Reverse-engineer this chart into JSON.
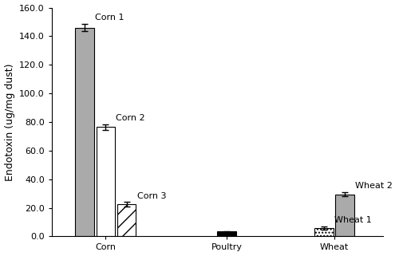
{
  "title": "",
  "ylabel": "Endotoxin (ug/mg dust)",
  "ylim": [
    0,
    160
  ],
  "yticks": [
    0.0,
    20.0,
    40.0,
    60.0,
    80.0,
    100.0,
    120.0,
    140.0,
    160.0
  ],
  "group_labels": [
    "Corn",
    "Poultry",
    "Wheat"
  ],
  "bars": [
    {
      "label": "Corn 1",
      "group": "Corn",
      "value": 146.0,
      "error": 2.5,
      "color": "#aaaaaa",
      "pattern": "",
      "show_label": true
    },
    {
      "label": "Corn 2",
      "group": "Corn",
      "value": 76.5,
      "error": 2.0,
      "color": "white",
      "pattern": "",
      "show_label": true
    },
    {
      "label": "Corn 3",
      "group": "Corn",
      "value": 22.5,
      "error": 1.5,
      "color": "white",
      "pattern": "//",
      "show_label": true
    },
    {
      "label": "Poultry",
      "group": "Poultry",
      "value": 3.5,
      "error": 0.3,
      "color": "black",
      "pattern": "",
      "show_label": false
    },
    {
      "label": "Wheat 1",
      "group": "Wheat",
      "value": 6.0,
      "error": 1.2,
      "color": "white",
      "pattern": "....",
      "show_label": true
    },
    {
      "label": "Wheat 2",
      "group": "Wheat",
      "value": 29.5,
      "error": 1.5,
      "color": "#aaaaaa",
      "pattern": "",
      "show_label": true
    }
  ],
  "bar_width": 0.7,
  "background_color": "#ffffff",
  "font_size_label": 9,
  "font_size_tick": 8,
  "font_size_bar_label": 8
}
